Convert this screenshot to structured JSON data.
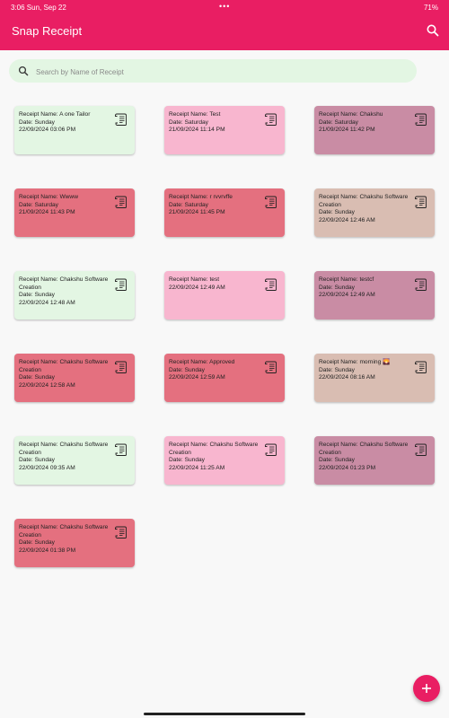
{
  "status_bar": {
    "time_date": "3:06  Sun, Sep 22",
    "dots": "•••",
    "right": "71%"
  },
  "app": {
    "title": "Snap Receipt"
  },
  "search": {
    "placeholder": "Search by Name of Receipt",
    "value": ""
  },
  "colors": {
    "primary": "#e91e63",
    "green": "#e3f6e3",
    "pink": "#f8b6cf",
    "red": "#e4707f",
    "mauve": "#c98ca4",
    "tan": "#d9bdb2"
  },
  "cards": [
    {
      "color": "green",
      "lines": [
        "Receipt Name: A one Tailor",
        "Date: Sunday",
        "22/09/2024 03:06 PM"
      ]
    },
    {
      "color": "pink",
      "lines": [
        "Receipt Name: Test",
        "Date: Saturday",
        "21/09/2024 11:14 PM"
      ]
    },
    {
      "color": "mauve",
      "lines": [
        "Receipt Name: Chakshu",
        "Date: Saturday",
        "21/09/2024 11:42 PM"
      ]
    },
    {
      "color": "red",
      "lines": [
        "Receipt Name: Wwww",
        "Date: Saturday",
        "21/09/2024 11:43 PM"
      ]
    },
    {
      "color": "red",
      "lines": [
        "Receipt Name: r rvvrvffe",
        "Date: Saturday",
        "21/09/2024 11:45 PM"
      ]
    },
    {
      "color": "tan",
      "lines": [
        "Receipt Name: Chakshu Software Creation",
        "Date: Sunday",
        "22/09/2024 12:46 AM"
      ]
    },
    {
      "color": "green",
      "lines": [
        "Receipt Name: Chakshu Software Creation",
        "Date: Sunday",
        "22/09/2024 12:48 AM"
      ]
    },
    {
      "color": "pink",
      "lines": [
        "Receipt Name: test",
        "22/09/2024 12:49 AM"
      ]
    },
    {
      "color": "mauve",
      "lines": [
        "Receipt Name: testcf",
        "Date: Sunday",
        "22/09/2024 12:49 AM"
      ]
    },
    {
      "color": "red",
      "lines": [
        "Receipt Name: Chakshu Software Creation",
        "Date: Sunday",
        "22/09/2024 12:58 AM"
      ]
    },
    {
      "color": "red",
      "lines": [
        "Receipt Name: Approved",
        "Date: Sunday",
        "22/09/2024 12:59 AM"
      ]
    },
    {
      "color": "tan",
      "lines": [
        "Receipt Name: morning 🌄",
        "Date: Sunday",
        "22/09/2024 08:16 AM"
      ]
    },
    {
      "color": "green",
      "lines": [
        "Receipt Name: Chakshu Software Creation",
        "Date: Sunday",
        "22/09/2024 09:35 AM"
      ]
    },
    {
      "color": "pink",
      "lines": [
        "Receipt Name: Chakshu Software Creation",
        "Date: Sunday",
        "22/09/2024 11:25 AM"
      ]
    },
    {
      "color": "mauve",
      "lines": [
        "Receipt Name: Chakshu Software Creation",
        "Date: Sunday",
        "22/09/2024 01:23 PM"
      ]
    },
    {
      "color": "red",
      "lines": [
        "Receipt Name: Chakshu Software Creation",
        "Date: Sunday",
        "22/09/2024 01:38 PM"
      ]
    }
  ],
  "fab": {
    "icon": "plus-icon"
  }
}
